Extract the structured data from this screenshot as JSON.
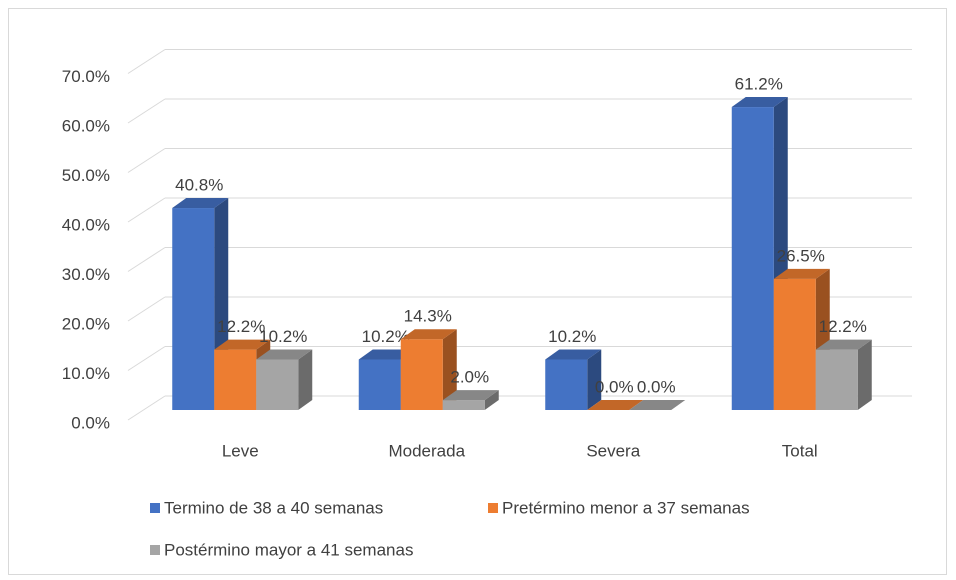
{
  "chart_data": {
    "type": "bar3d",
    "categories": [
      "Leve",
      "Moderada",
      "Severa",
      "Total"
    ],
    "series": [
      {
        "name": "Termino de 38 a 40 semanas",
        "color": "#4472c4",
        "values": [
          40.8,
          10.2,
          10.2,
          61.2
        ],
        "value_labels": [
          "40.8%",
          "10.2%",
          "10.2%",
          "61.2%"
        ]
      },
      {
        "name": "Pretérmino menor a 37 semanas",
        "color": "#ed7d31",
        "values": [
          12.2,
          14.3,
          0.0,
          26.5
        ],
        "value_labels": [
          "12.2%",
          "14.3%",
          "0.0%",
          "26.5%"
        ]
      },
      {
        "name": "Postérmino mayor a 41 semanas",
        "color": "#a5a5a5",
        "values": [
          10.2,
          2.0,
          0.0,
          12.2
        ],
        "value_labels": [
          "10.2%",
          "2.0%",
          "0.0%",
          "12.2%"
        ]
      }
    ],
    "ylim": [
      0,
      70
    ],
    "yticks": [
      {
        "value": 0,
        "label": "0.0%"
      },
      {
        "value": 10,
        "label": "10.0%"
      },
      {
        "value": 20,
        "label": "20.0%"
      },
      {
        "value": 30,
        "label": "30.0%"
      },
      {
        "value": 40,
        "label": "40.0%"
      },
      {
        "value": 50,
        "label": "50.0%"
      },
      {
        "value": 60,
        "label": "60.0%"
      },
      {
        "value": 70,
        "label": "70.0%"
      }
    ],
    "grid": true,
    "legend": "bottom"
  }
}
